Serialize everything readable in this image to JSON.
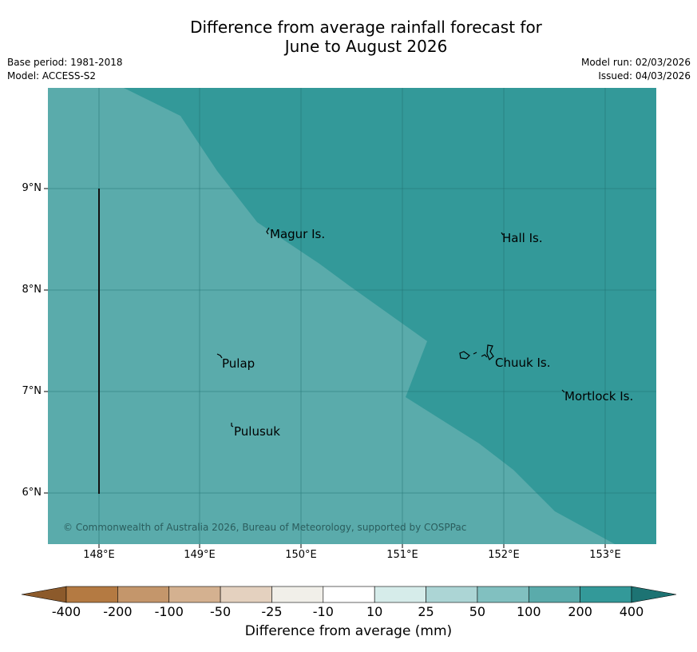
{
  "title_line1": "Difference from average rainfall forecast for",
  "title_line2": "June to August 2026",
  "meta": {
    "base_period": "Base period: 1981-2018",
    "model": "Model: ACCESS-S2",
    "model_run": "Model run: 02/03/2026",
    "issued": "Issued: 04/03/2026"
  },
  "map": {
    "lat_ticks": [
      "9°N",
      "8°N",
      "7°N",
      "6°N"
    ],
    "lon_ticks": [
      "148°E",
      "149°E",
      "150°E",
      "151°E",
      "152°E",
      "153°E"
    ],
    "places": {
      "magur": "Magur Is.",
      "hall": "Hall Is.",
      "pulap": "Pulap",
      "chuuk": "Chuuk Is.",
      "mortlock": "Mortlock Is.",
      "pulusuk": "Pulusuk"
    },
    "region_colors": {
      "light_teal": "#5aabab",
      "dark_teal": "#339999"
    },
    "copyright": "© Commonwealth of Australia 2026, Bureau of Meteorology, supported by COSPPac"
  },
  "colorbar": {
    "title": "Difference from average (mm)",
    "labels": [
      "-400",
      "-200",
      "-100",
      "-50",
      "-25",
      "-10",
      "10",
      "25",
      "50",
      "100",
      "200",
      "400"
    ],
    "colors": [
      "#8c5a2b",
      "#b47a42",
      "#c4966b",
      "#d4b190",
      "#e4d1bf",
      "#f1efe9",
      "#ffffff",
      "#d6ecea",
      "#acd5d5",
      "#81c0c0",
      "#5aabab",
      "#339999",
      "#1d7373"
    ]
  }
}
